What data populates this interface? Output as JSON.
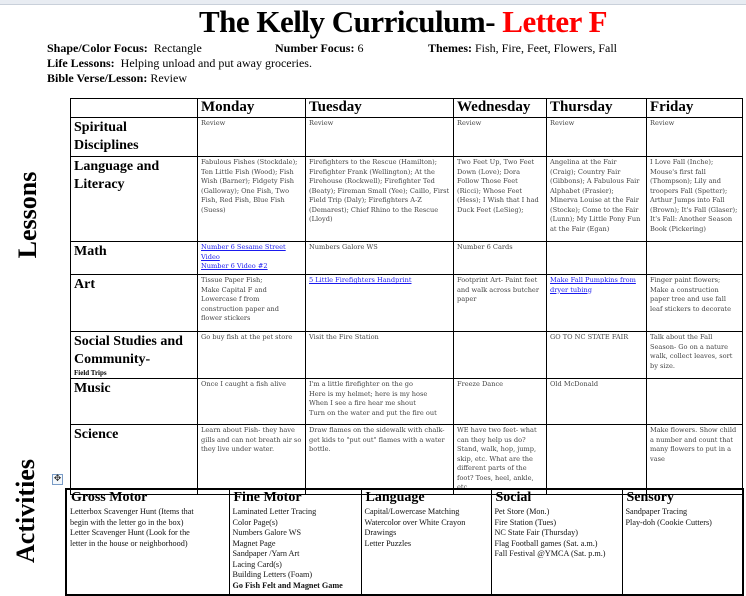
{
  "title": {
    "main": "The Kelly Curriculum- ",
    "letter": "Letter F"
  },
  "meta": {
    "shape_label": "Shape/Color Focus:",
    "shape_value": "Rectangle",
    "number_label": "Number Focus:",
    "number_value": "6",
    "themes_label": "Themes:",
    "themes_value": "Fish, Fire, Feet, Flowers, Fall",
    "life_label": "Life Lessons:",
    "life_value": "Helping unload and put away groceries.",
    "bible_label": "Bible Verse/Lesson:",
    "bible_value": "Review"
  },
  "side_labels": {
    "lessons": "Lessons",
    "activities": "Activities"
  },
  "days": [
    "Monday",
    "Tuesday",
    "Wednesday",
    "Thursday",
    "Friday"
  ],
  "rows": [
    {
      "label": "Spiritual Disciplines",
      "cells": [
        "Review",
        "Review",
        "Review",
        "Review",
        "Review"
      ]
    },
    {
      "label": "Language and Literacy",
      "cells": [
        "Fabulous Fishes (Stockdale); Ten Little Fish (Wood); Fish Wish (Barner); Fidgety Fish (Galloway); One Fish, Two Fish, Red Fish, Blue Fish (Suess)",
        "Firefighters to the Rescue (Hamilton); Firefighter Frank (Wellington); At the Firehouse (Rockwell); Firefighter Ted (Beaty); Fireman Small (Yee); Caillo, First Field Trip (Daly); Firefighters A-Z (Demarest); Chief Rhino to the Rescue (Lloyd)",
        "Two Feet Up, Two Feet Down (Love); Dora Follow Those Feet (Ricci); Whose Feet (Hess); I Wish that I had Duck Feet (LeSieg);",
        "Angelina at the Fair (Craig); Country Fair (Gibbons); A Fabulous Fair Alphabet (Frasier); Minerva Louise at the Fair (Stocke); Come to the Fair (Lunn); My Little Pony Fun at the Fair (Egan)",
        "I Love Fall (Inche); Mouse's first fall (Thompson); Lily and troopers Fall (Spetter); Arthur Jumps into Fall (Brown); It's Fall (Glaser); It's Fall: Another Season Book (Pickering)"
      ]
    },
    {
      "label": "Math",
      "cells": [
        "",
        "Numbers Galore WS",
        "Number 6 Cards",
        "",
        ""
      ],
      "links": [
        "Number 6 Sesame Street Video",
        "Number 6 Video #2"
      ]
    },
    {
      "label": "Art",
      "cells": [
        "Tissue Paper Fish;\nMake Capital F and Lowercase f from construction paper and flower stickers",
        "5 Little Firefighters Handprint",
        "Footprint Art- Paint feet and walk across butcher paper",
        "Make Fall Pumpkins from dryer tubing",
        "Finger paint flowers; Make a construction paper tree and use fall leaf stickers to decorate"
      ]
    },
    {
      "label": "Social Studies and Community-",
      "sublabel": "Field Trips",
      "cells": [
        "Go buy fish at the pet store",
        "Visit the Fire Station",
        "",
        "GO TO NC STATE FAIR",
        "Talk about the Fall Season- Go on a nature walk, collect leaves, sort by size."
      ]
    },
    {
      "label": "Music",
      "cells": [
        "Once I caught a fish alive",
        "I'm a little firefighter on the go\nHere is my helmet; here is my hose\nWhen I see a fire hear me shout\nTurn on the water and put the fire out",
        "Freeze Dance",
        "Old McDonald",
        ""
      ]
    },
    {
      "label": "Science",
      "cells": [
        "Learn about Fish- they have gills and can not breath air so they live under water.",
        "Draw flames on the sidewalk with chalk- get kids to \"put out\" flames with a water bottle.",
        "WE have two feet- what can they help us do? Stand, walk, hop, jump, skip, etc. What are the different parts of the foot? Toes, heel, ankle, etc.",
        "",
        "Make flowers. Show child a number and count that many flowers to put in a vase"
      ]
    }
  ],
  "activities": [
    {
      "heading": "Gross Motor",
      "items": [
        "Letterbox Scavenger Hunt (Items that",
        "begin with the letter go in the box)",
        "Letter Scavenger Hunt (Look for the",
        "letter in the house or neighborhood)"
      ]
    },
    {
      "heading": "Fine Motor",
      "items": [
        "Laminated Letter Tracing",
        "Color Page(s)",
        "Numbers Galore WS",
        "Magnet Page",
        "Sandpaper /Yarn Art",
        "Lacing Card(s)",
        "Building Letters (Foam)",
        "Go Fish Felt and Magnet Game"
      ]
    },
    {
      "heading": "Language",
      "items": [
        "Capital/Lowercase Matching",
        "Watercolor over White Crayon",
        "Drawings",
        "Letter Puzzles"
      ]
    },
    {
      "heading": "Social",
      "items": [
        "Pet Store (Mon.)",
        "Fire Station (Tues)",
        "NC State Fair (Thursday)",
        "Flag Football games (Sat. a.m.)",
        "Fall Festival @YMCA (Sat. p.m.)"
      ]
    },
    {
      "heading": "Sensory",
      "items": [
        "Sandpaper Tracing",
        "Play-doh (Cookie Cutters)"
      ]
    }
  ],
  "colors": {
    "title_accent": "#ff0000",
    "link": "#1a1aee"
  }
}
